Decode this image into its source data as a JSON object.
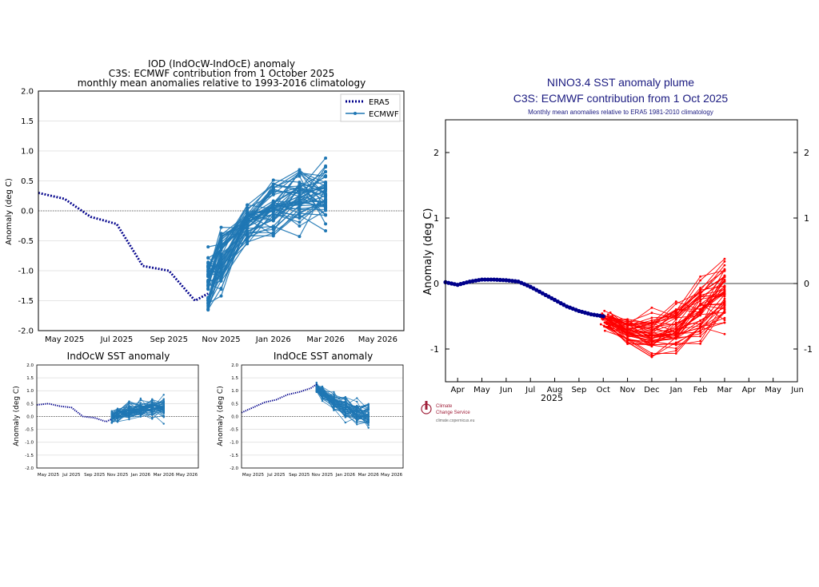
{
  "chart_data": [
    {
      "id": "iod",
      "type": "line",
      "title": "IOD (IndOcW-IndOcE) anomaly",
      "subtitle1": "C3S: ECMWF contribution from 1 October 2025",
      "subtitle2": "monthly mean anomalies relative to 1993-2016 climatology",
      "ylabel": "Anomaly (deg C)",
      "ylim": [
        -2.0,
        2.0
      ],
      "yticks": [
        "2.0",
        "1.5",
        "1.0",
        "0.5",
        "0.0",
        "-0.5",
        "-1.0",
        "-1.5",
        "-2.0"
      ],
      "xlim": [
        0,
        14
      ],
      "xticks": [
        {
          "x": 1,
          "label": "May 2025"
        },
        {
          "x": 3,
          "label": "Jul 2025"
        },
        {
          "x": 5,
          "label": "Sep 2025"
        },
        {
          "x": 7,
          "label": "Nov 2025"
        },
        {
          "x": 9,
          "label": "Jan 2026"
        },
        {
          "x": 11,
          "label": "Mar 2026"
        },
        {
          "x": 13,
          "label": "May 2026"
        }
      ],
      "legend": [
        {
          "name": "ERA5",
          "style": "dotted"
        },
        {
          "name": "ECMWF",
          "style": "line-marker"
        }
      ],
      "era5": {
        "x": [
          0,
          1,
          2,
          3,
          4,
          5,
          6,
          6.5
        ],
        "y": [
          0.3,
          0.2,
          -0.1,
          -0.22,
          -0.92,
          -1.0,
          -1.5,
          -1.38
        ]
      },
      "ensemble": {
        "start_x": 6.5,
        "start_y": -1.2,
        "start_spread": 0.35,
        "mean": [
          -1.2,
          -0.8,
          -0.2,
          0.05,
          0.25,
          0.3
        ],
        "spread": [
          0.35,
          0.4,
          0.25,
          0.3,
          0.35,
          0.38
        ],
        "members": 51,
        "x": [
          6.5,
          7,
          8,
          9,
          10,
          11
        ]
      }
    },
    {
      "id": "indocw",
      "type": "line",
      "title": "IndOcW SST anomaly",
      "ylabel": "Anomaly (deg C)",
      "ylim": [
        -2.0,
        2.0
      ],
      "yticks": [
        "2.0",
        "1.5",
        "1.0",
        "0.5",
        "0.0",
        "-0.5",
        "-1.0",
        "-1.5",
        "-2.0"
      ],
      "xlim": [
        0,
        14
      ],
      "xticks": [
        {
          "x": 1,
          "label": "May 2025"
        },
        {
          "x": 3,
          "label": "Jul 2025"
        },
        {
          "x": 5,
          "label": "Sep 2025"
        },
        {
          "x": 7,
          "label": "Nov 2025"
        },
        {
          "x": 9,
          "label": "Jan 2026"
        },
        {
          "x": 11,
          "label": "Mar 2026"
        },
        {
          "x": 13,
          "label": "May 2026"
        }
      ],
      "era5": {
        "x": [
          0,
          1,
          2,
          3,
          4,
          5,
          6,
          6.5
        ],
        "y": [
          0.45,
          0.5,
          0.4,
          0.35,
          0.0,
          -0.05,
          -0.2,
          -0.1
        ]
      },
      "ensemble": {
        "start_x": 6.5,
        "start_y": -0.05,
        "start_spread": 0.15,
        "mean": [
          -0.05,
          0.05,
          0.2,
          0.25,
          0.3,
          0.35
        ],
        "spread": [
          0.15,
          0.2,
          0.25,
          0.25,
          0.25,
          0.3
        ],
        "members": 51,
        "x": [
          6.5,
          7,
          8,
          9,
          10,
          11
        ]
      }
    },
    {
      "id": "indoce",
      "type": "line",
      "title": "IndOcE SST anomaly",
      "ylabel": "Anomaly (deg C)",
      "ylim": [
        -2.0,
        2.0
      ],
      "yticks": [
        "2.0",
        "1.5",
        "1.0",
        "0.5",
        "0.0",
        "-0.5",
        "-1.0",
        "-1.5",
        "-2.0"
      ],
      "xlim": [
        0,
        14
      ],
      "xticks": [
        {
          "x": 1,
          "label": "May 2025"
        },
        {
          "x": 3,
          "label": "Jul 2025"
        },
        {
          "x": 5,
          "label": "Sep 2025"
        },
        {
          "x": 7,
          "label": "Nov 2025"
        },
        {
          "x": 9,
          "label": "Jan 2026"
        },
        {
          "x": 11,
          "label": "Mar 2026"
        },
        {
          "x": 13,
          "label": "May 2026"
        }
      ],
      "era5": {
        "x": [
          0,
          1,
          2,
          3,
          4,
          5,
          6,
          6.5
        ],
        "y": [
          0.15,
          0.35,
          0.55,
          0.65,
          0.85,
          0.95,
          1.1,
          1.25
        ]
      },
      "ensemble": {
        "start_x": 6.5,
        "start_y": 1.1,
        "start_spread": 0.15,
        "mean": [
          1.1,
          0.9,
          0.55,
          0.35,
          0.15,
          0.1
        ],
        "spread": [
          0.15,
          0.2,
          0.25,
          0.3,
          0.3,
          0.35
        ],
        "members": 51,
        "x": [
          6.5,
          7,
          8,
          9,
          10,
          11
        ]
      }
    },
    {
      "id": "nino34",
      "type": "line",
      "title": "NINO3.4 SST anomaly plume",
      "subtitle1": "C3S: ECMWF contribution from 1 Oct 2025",
      "subtitle2": "Monthly mean anomalies relative to ERA5 1981-2010 climatology",
      "ylabel": "Anomaly (deg C)",
      "ylim": [
        -1.5,
        2.5
      ],
      "yticks": [
        {
          "v": 2,
          "label": "2"
        },
        {
          "v": 1,
          "label": "1"
        },
        {
          "v": 0,
          "label": "0"
        },
        {
          "v": -1,
          "label": "-1"
        }
      ],
      "xlim": [
        0,
        14.5
      ],
      "xticks": [
        {
          "x": 0.5,
          "label": "Apr"
        },
        {
          "x": 1.5,
          "label": "May"
        },
        {
          "x": 2.5,
          "label": "Jun"
        },
        {
          "x": 3.5,
          "label": "Jul"
        },
        {
          "x": 4.5,
          "label": "Aug"
        },
        {
          "x": 5.5,
          "label": "Sep"
        },
        {
          "x": 6.5,
          "label": "Oct"
        },
        {
          "x": 7.5,
          "label": "Nov"
        },
        {
          "x": 8.5,
          "label": "Dec"
        },
        {
          "x": 9.5,
          "label": "Jan"
        },
        {
          "x": 10.5,
          "label": "Feb"
        },
        {
          "x": 11.5,
          "label": "Mar"
        },
        {
          "x": 12.5,
          "label": "Apr"
        },
        {
          "x": 13.5,
          "label": "May"
        },
        {
          "x": 14.5,
          "label": "Jun"
        }
      ],
      "year_label": "2025",
      "era5": {
        "x": [
          0,
          0.5,
          1,
          1.5,
          2,
          2.5,
          3,
          3.5,
          4,
          4.5,
          5,
          5.5,
          6,
          6.5
        ],
        "y": [
          0.02,
          -0.02,
          0.03,
          0.06,
          0.06,
          0.05,
          0.03,
          -0.05,
          -0.15,
          -0.25,
          -0.35,
          -0.42,
          -0.47,
          -0.5
        ]
      },
      "ensemble": {
        "start_x": 6.5,
        "start_y": -0.55,
        "mean": [
          -0.55,
          -0.7,
          -0.75,
          -0.65,
          -0.35,
          -0.1
        ],
        "spread": [
          0.08,
          0.12,
          0.18,
          0.22,
          0.28,
          0.32
        ],
        "members": 51,
        "x": [
          6.5,
          7.5,
          8.5,
          9.5,
          10.5,
          11.5
        ]
      },
      "logo": {
        "line1": "Climate",
        "line2": "Change Service",
        "url": "climate.copernicus.eu"
      }
    }
  ],
  "colors": {
    "ecmwf": "#1f77b4",
    "era5": "#00008b",
    "nino_fc": "#ff0000",
    "nino_title": "#1a1a80",
    "grid": "#dcdcdc",
    "logo": "#a0203a"
  }
}
